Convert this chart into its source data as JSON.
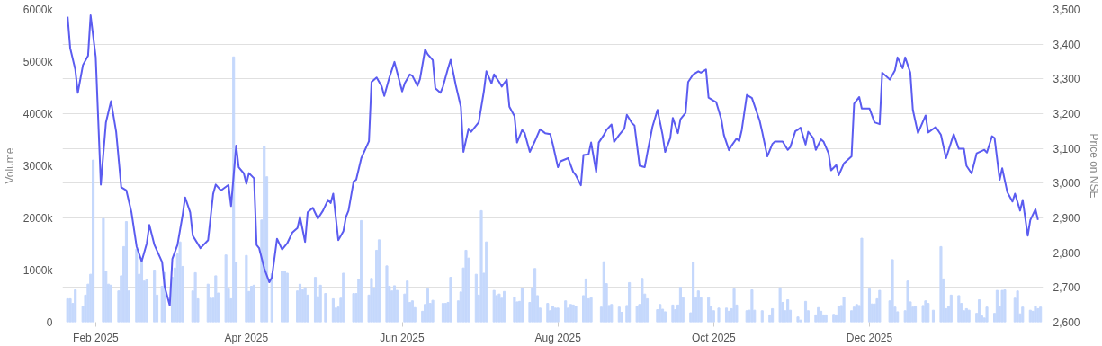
{
  "chart_data": {
    "type": "bar",
    "ylabel": "Volume",
    "y2label": "Price on NSE",
    "xlim": [
      "2025-01-19",
      "2026-02-07"
    ],
    "xticks": [
      {
        "value": "2025-02-01",
        "label": "Feb 2025"
      },
      {
        "value": "2025-04-01",
        "label": "Apr 2025"
      },
      {
        "value": "2025-06-01",
        "label": "Jun 2025"
      },
      {
        "value": "2025-08-01",
        "label": "Aug 2025"
      },
      {
        "value": "2025-10-01",
        "label": "Oct 2025"
      },
      {
        "value": "2025-12-01",
        "label": "Dec 2025"
      }
    ],
    "ylim": [
      0,
      6000
    ],
    "yticks": [
      0,
      {
        "value": 1000,
        "label": "1000k"
      },
      {
        "value": 2000,
        "label": "2000k"
      },
      {
        "value": 3000,
        "label": "3000k"
      },
      {
        "value": 4000,
        "label": "4000k"
      },
      {
        "value": 5000,
        "label": "5000k"
      },
      {
        "value": 6000,
        "label": "6000k"
      }
    ],
    "y2lim": [
      2600,
      3500
    ],
    "y2ticks": [
      {
        "value": 2600,
        "label": "2,600"
      },
      {
        "value": 2700,
        "label": "2,700"
      },
      {
        "value": 2800,
        "label": "2,800"
      },
      {
        "value": 2900,
        "label": "2,900"
      },
      {
        "value": 3000,
        "label": "3,000"
      },
      {
        "value": 3100,
        "label": "3,100"
      },
      {
        "value": 3200,
        "label": "3,200"
      },
      {
        "value": 3300,
        "label": "3,300"
      },
      {
        "value": 3400,
        "label": "3,400"
      },
      {
        "value": 3500,
        "label": "3,500"
      }
    ],
    "grid": "y2",
    "series": [
      {
        "color": "#c5d8fc",
        "x": [
          "2025-01-21",
          "2025-01-22",
          "2025-01-23",
          "2025-01-24",
          "2025-01-27",
          "2025-01-28",
          "2025-01-29",
          "2025-01-30",
          "2025-01-31",
          "2025-02-04",
          "2025-02-05",
          "2025-02-06",
          "2025-02-07",
          "2025-02-10",
          "2025-02-11",
          "2025-02-12",
          "2025-02-13",
          "2025-02-14",
          "2025-02-17",
          "2025-02-18",
          "2025-02-19",
          "2025-02-20",
          "2025-02-21",
          "2025-02-24",
          "2025-02-25",
          "2025-02-27",
          "2025-02-28",
          "2025-03-03",
          "2025-03-04",
          "2025-03-05",
          "2025-03-06",
          "2025-03-07",
          "2025-03-11",
          "2025-03-12",
          "2025-03-13",
          "2025-03-17",
          "2025-03-18",
          "2025-03-19",
          "2025-03-20",
          "2025-03-21",
          "2025-03-24",
          "2025-03-25",
          "2025-03-26",
          "2025-03-27",
          "2025-03-28",
          "2025-04-01",
          "2025-04-02",
          "2025-04-03",
          "2025-04-04",
          "2025-04-07",
          "2025-04-08",
          "2025-04-09",
          "2025-04-11",
          "2025-04-15",
          "2025-04-16",
          "2025-04-17",
          "2025-04-21",
          "2025-04-22",
          "2025-04-23",
          "2025-04-24",
          "2025-04-25",
          "2025-04-28",
          "2025-04-29",
          "2025-04-30",
          "2025-05-02",
          "2025-05-05",
          "2025-05-06",
          "2025-05-07",
          "2025-05-08",
          "2025-05-09",
          "2025-05-13",
          "2025-05-14",
          "2025-05-15",
          "2025-05-16",
          "2025-05-19",
          "2025-05-20",
          "2025-05-21",
          "2025-05-22",
          "2025-05-23",
          "2025-05-26",
          "2025-05-27",
          "2025-05-28",
          "2025-05-29",
          "2025-05-30",
          "2025-06-02",
          "2025-06-03",
          "2025-06-04",
          "2025-06-05",
          "2025-06-06",
          "2025-06-09",
          "2025-06-10",
          "2025-06-11",
          "2025-06-12",
          "2025-06-13",
          "2025-06-17",
          "2025-06-18",
          "2025-06-19",
          "2025-06-20",
          "2025-06-23",
          "2025-06-24",
          "2025-06-25",
          "2025-06-26",
          "2025-06-27",
          "2025-06-30",
          "2025-07-01",
          "2025-07-02",
          "2025-07-03",
          "2025-07-04",
          "2025-07-07",
          "2025-07-08",
          "2025-07-09",
          "2025-07-10",
          "2025-07-11",
          "2025-07-15",
          "2025-07-16",
          "2025-07-17",
          "2025-07-18",
          "2025-07-21",
          "2025-07-22",
          "2025-07-23",
          "2025-07-24",
          "2025-07-25",
          "2025-07-28",
          "2025-07-29",
          "2025-07-30",
          "2025-07-31",
          "2025-08-01",
          "2025-08-04",
          "2025-08-05",
          "2025-08-06",
          "2025-08-07",
          "2025-08-08",
          "2025-08-11",
          "2025-08-12",
          "2025-08-13",
          "2025-08-14",
          "2025-08-18",
          "2025-08-19",
          "2025-08-20",
          "2025-08-21",
          "2025-08-22",
          "2025-08-25",
          "2025-08-26",
          "2025-08-28",
          "2025-08-29",
          "2025-09-01",
          "2025-09-02",
          "2025-09-03",
          "2025-09-04",
          "2025-09-05",
          "2025-09-09",
          "2025-09-10",
          "2025-09-11",
          "2025-09-12",
          "2025-09-15",
          "2025-09-16",
          "2025-09-17",
          "2025-09-18",
          "2025-09-19",
          "2025-09-22",
          "2025-09-23",
          "2025-09-24",
          "2025-09-25",
          "2025-09-26",
          "2025-09-29",
          "2025-09-30",
          "2025-10-01",
          "2025-10-03",
          "2025-10-06",
          "2025-10-07",
          "2025-10-08",
          "2025-10-09",
          "2025-10-10",
          "2025-10-14",
          "2025-10-15",
          "2025-10-16",
          "2025-10-17",
          "2025-10-20",
          "2025-10-23",
          "2025-10-24",
          "2025-10-27",
          "2025-10-28",
          "2025-10-29",
          "2025-10-30",
          "2025-10-31",
          "2025-11-03",
          "2025-11-04",
          "2025-11-06",
          "2025-11-07",
          "2025-11-10",
          "2025-11-11",
          "2025-11-12",
          "2025-11-13",
          "2025-11-14",
          "2025-11-17",
          "2025-11-18",
          "2025-11-19",
          "2025-11-20",
          "2025-11-21",
          "2025-11-24",
          "2025-11-25",
          "2025-11-26",
          "2025-11-27",
          "2025-11-28",
          "2025-12-01",
          "2025-12-02",
          "2025-12-03",
          "2025-12-04",
          "2025-12-05",
          "2025-12-09",
          "2025-12-10",
          "2025-12-11",
          "2025-12-12",
          "2025-12-15",
          "2025-12-16",
          "2025-12-17",
          "2025-12-18",
          "2025-12-19",
          "2025-12-22",
          "2025-12-23",
          "2025-12-24",
          "2025-12-26",
          "2025-12-29",
          "2025-12-30",
          "2025-12-31",
          "2026-01-01",
          "2026-01-02",
          "2026-01-05",
          "2026-01-06",
          "2026-01-07",
          "2026-01-08",
          "2026-01-09",
          "2026-01-12",
          "2026-01-13",
          "2026-01-14",
          "2026-01-15",
          "2026-01-16",
          "2026-01-19",
          "2026-01-20",
          "2026-01-21",
          "2026-01-22",
          "2026-01-23",
          "2026-01-27",
          "2026-01-28",
          "2026-01-29",
          "2026-01-30",
          "2026-02-02",
          "2026-02-03",
          "2026-02-04",
          "2026-02-05",
          "2026-02-06"
        ],
        "values": [
          450,
          450,
          360,
          620,
          300,
          520,
          730,
          920,
          3110,
          1990,
          980,
          730,
          710,
          600,
          890,
          1450,
          1930,
          600,
          1400,
          920,
          1180,
          790,
          820,
          1000,
          520,
          690,
          950,
          860,
          1040,
          1310,
          1540,
          1070,
          600,
          950,
          450,
          730,
          460,
          460,
          890,
          560,
          1290,
          640,
          450,
          5090,
          1150,
          1280,
          590,
          690,
          710,
          1960,
          3370,
          2790,
          930,
          980,
          980,
          940,
          600,
          730,
          620,
          660,
          520,
          860,
          490,
          710,
          550,
          450,
          270,
          290,
          460,
          940,
          550,
          550,
          820,
          1950,
          520,
          840,
          650,
          1380,
          1580,
          1080,
          690,
          600,
          700,
          610,
          540,
          790,
          380,
          410,
          280,
          210,
          340,
          640,
          360,
          420,
          360,
          360,
          380,
          860,
          410,
          580,
          1040,
          1380,
          1230,
          920,
          520,
          2140,
          940,
          1540,
          610,
          510,
          540,
          460,
          590,
          480,
          390,
          400,
          650,
          380,
          660,
          1030,
          510,
          270,
          360,
          220,
          300,
          270,
          270,
          410,
          270,
          340,
          330,
          300,
          510,
          830,
          450,
          470,
          290,
          1160,
          740,
          320,
          340,
          290,
          190,
          320,
          760,
          300,
          340,
          840,
          540,
          450,
          240,
          340,
          250,
          200,
          330,
          240,
          330,
          670,
          470,
          180,
          1150,
          470,
          600,
          470,
          470,
          300,
          220,
          270,
          270,
          210,
          260,
          640,
          330,
          220,
          230,
          620,
          230,
          220,
          140,
          260,
          660,
          380,
          220,
          430,
          230,
          100,
          40,
          400,
          220,
          140,
          280,
          210,
          140,
          140,
          150,
          140,
          300,
          320,
          480,
          220,
          290,
          340,
          320,
          1610,
          640,
          350,
          350,
          450,
          610,
          410,
          1200,
          290,
          200,
          220,
          790,
          390,
          290,
          300,
          320,
          410,
          360,
          230,
          1450,
          830,
          260,
          300,
          520,
          510,
          360,
          220,
          260,
          230,
          170,
          430,
          120,
          80,
          290,
          170,
          610,
          300,
          610,
          620,
          460,
          600,
          160,
          290,
          230,
          210,
          300,
          260,
          290
        ]
      },
      {
        "type": "line",
        "axis": "y2",
        "color": "#5b5cf0",
        "x": [
          "2025-01-21",
          "2025-01-22",
          "2025-01-24",
          "2025-01-25",
          "2025-01-27",
          "2025-01-29",
          "2025-01-30",
          "2025-02-01",
          "2025-02-03",
          "2025-02-05",
          "2025-02-07",
          "2025-02-09",
          "2025-02-11",
          "2025-02-13",
          "2025-02-15",
          "2025-02-17",
          "2025-02-19",
          "2025-02-21",
          "2025-02-22",
          "2025-02-24",
          "2025-02-27",
          "2025-02-28",
          "2025-03-02",
          "2025-03-03",
          "2025-03-05",
          "2025-03-07",
          "2025-03-08",
          "2025-03-10",
          "2025-03-11",
          "2025-03-14",
          "2025-03-17",
          "2025-03-19",
          "2025-03-20",
          "2025-03-22",
          "2025-03-25",
          "2025-03-26",
          "2025-03-28",
          "2025-03-29",
          "2025-03-31",
          "2025-04-01",
          "2025-04-02",
          "2025-04-04",
          "2025-04-05",
          "2025-04-06",
          "2025-04-08",
          "2025-04-10",
          "2025-04-11",
          "2025-04-13",
          "2025-04-15",
          "2025-04-17",
          "2025-04-19",
          "2025-04-21",
          "2025-04-22",
          "2025-04-24",
          "2025-04-25",
          "2025-04-27",
          "2025-04-29",
          "2025-05-01",
          "2025-05-03",
          "2025-05-04",
          "2025-05-05",
          "2025-05-07",
          "2025-05-09",
          "2025-05-10",
          "2025-05-11",
          "2025-05-13",
          "2025-05-14",
          "2025-05-16",
          "2025-05-19",
          "2025-05-20",
          "2025-05-22",
          "2025-05-24",
          "2025-05-25",
          "2025-05-27",
          "2025-05-29",
          "2025-06-01",
          "2025-06-02",
          "2025-06-04",
          "2025-06-05",
          "2025-06-07",
          "2025-06-08",
          "2025-06-10",
          "2025-06-11",
          "2025-06-13",
          "2025-06-14",
          "2025-06-16",
          "2025-06-17",
          "2025-06-19",
          "2025-06-20",
          "2025-06-22",
          "2025-06-24",
          "2025-06-25",
          "2025-06-27",
          "2025-06-28",
          "2025-07-01",
          "2025-07-03",
          "2025-07-04",
          "2025-07-06",
          "2025-07-07",
          "2025-07-09",
          "2025-07-10",
          "2025-07-12",
          "2025-07-13",
          "2025-07-15",
          "2025-07-16",
          "2025-07-18",
          "2025-07-19",
          "2025-07-21",
          "2025-07-23",
          "2025-07-25",
          "2025-07-27",
          "2025-07-29",
          "2025-07-30",
          "2025-08-01",
          "2025-08-02",
          "2025-08-05",
          "2025-08-07",
          "2025-08-08",
          "2025-08-10",
          "2025-08-11",
          "2025-08-13",
          "2025-08-14",
          "2025-08-16",
          "2025-08-17",
          "2025-08-19",
          "2025-08-20",
          "2025-08-22",
          "2025-08-23",
          "2025-08-25",
          "2025-08-27",
          "2025-08-28",
          "2025-08-30",
          "2025-08-31",
          "2025-09-02",
          "2025-09-04",
          "2025-09-05",
          "2025-09-07",
          "2025-09-09",
          "2025-09-11",
          "2025-09-12",
          "2025-09-14",
          "2025-09-15",
          "2025-09-17",
          "2025-09-18",
          "2025-09-20",
          "2025-09-21",
          "2025-09-23",
          "2025-09-25",
          "2025-09-26",
          "2025-09-28",
          "2025-09-29",
          "2025-10-01",
          "2025-10-02",
          "2025-10-04",
          "2025-10-05",
          "2025-10-07",
          "2025-10-08",
          "2025-10-10",
          "2025-10-11",
          "2025-10-12",
          "2025-10-14",
          "2025-10-16",
          "2025-10-19",
          "2025-10-20",
          "2025-10-22",
          "2025-10-24",
          "2025-10-25",
          "2025-10-28",
          "2025-10-30",
          "2025-10-31",
          "2025-11-02",
          "2025-11-03",
          "2025-11-04",
          "2025-11-06",
          "2025-11-07",
          "2025-11-09",
          "2025-11-10",
          "2025-11-12",
          "2025-11-13",
          "2025-11-15",
          "2025-11-16",
          "2025-11-18",
          "2025-11-19",
          "2025-11-21",
          "2025-11-24",
          "2025-11-25",
          "2025-11-27",
          "2025-11-28",
          "2025-12-01",
          "2025-12-03",
          "2025-12-05",
          "2025-12-06",
          "2025-12-09",
          "2025-12-11",
          "2025-12-12",
          "2025-12-14",
          "2025-12-15",
          "2025-12-17",
          "2025-12-18",
          "2025-12-20",
          "2025-12-23",
          "2025-12-24",
          "2025-12-27",
          "2025-12-29",
          "2025-12-31",
          "2026-01-03",
          "2026-01-05",
          "2026-01-07",
          "2026-01-08",
          "2026-01-10",
          "2026-01-12",
          "2026-01-15",
          "2026-01-16",
          "2026-01-18",
          "2026-01-19",
          "2026-01-21",
          "2026-01-22",
          "2026-01-24",
          "2026-01-26",
          "2026-01-27",
          "2026-01-29",
          "2026-01-30",
          "2026-02-01",
          "2026-02-02",
          "2026-02-04",
          "2026-02-05"
        ],
        "values": [
          3479,
          3389,
          3327,
          3260,
          3340,
          3367,
          3483,
          3363,
          2996,
          3175,
          3236,
          3148,
          2988,
          2979,
          2916,
          2818,
          2775,
          2827,
          2880,
          2822,
          2773,
          2702,
          2648,
          2782,
          2822,
          2907,
          2959,
          2916,
          2849,
          2813,
          2836,
          2970,
          2996,
          2979,
          2995,
          2934,
          3108,
          3046,
          3028,
          2998,
          3029,
          3014,
          2822,
          2813,
          2755,
          2715,
          2729,
          2840,
          2809,
          2827,
          2858,
          2871,
          2903,
          2831,
          2916,
          2929,
          2898,
          2921,
          2952,
          2943,
          2970,
          2836,
          2862,
          2903,
          2921,
          3005,
          3010,
          3072,
          3121,
          3291,
          3304,
          3278,
          3251,
          3304,
          3349,
          3264,
          3287,
          3313,
          3309,
          3280,
          3300,
          3385,
          3371,
          3354,
          3273,
          3260,
          3278,
          3331,
          3355,
          3282,
          3220,
          3090,
          3157,
          3148,
          3175,
          3264,
          3322,
          3287,
          3313,
          3291,
          3278,
          3298,
          3220,
          3193,
          3117,
          3153,
          3144,
          3090,
          3121,
          3155,
          3144,
          3141,
          3112,
          3046,
          3063,
          3072,
          3032,
          3023,
          2994,
          3081,
          3083,
          3117,
          3032,
          3117,
          3139,
          3153,
          3169,
          3119,
          3139,
          3157,
          3197,
          3173,
          3166,
          3050,
          3046,
          3086,
          3162,
          3211,
          3139,
          3090,
          3130,
          3188,
          3144,
          3184,
          3202,
          3291,
          3313,
          3322,
          3318,
          3327,
          3246,
          3237,
          3233,
          3184,
          3139,
          3095,
          3108,
          3129,
          3121,
          3153,
          3254,
          3245,
          3180,
          3148,
          3077,
          3113,
          3120,
          3120,
          3096,
          3104,
          3150,
          3154,
          3160,
          3111,
          3148,
          3130,
          3096,
          3126,
          3120,
          3086,
          3037,
          3052,
          3023,
          3057,
          3077,
          3229,
          3248,
          3215,
          3215,
          3175,
          3170,
          3318,
          3298,
          3325,
          3362,
          3331,
          3362,
          3318,
          3211,
          3144,
          3195,
          3146,
          3162,
          3139,
          3072,
          3141,
          3099,
          3099,
          3050,
          3028,
          3086,
          3096,
          3088,
          3135,
          3130,
          3010,
          3043,
          2974,
          2947,
          2970,
          2921,
          2952,
          2849,
          2894,
          2925,
          2894
        ]
      }
    ]
  }
}
